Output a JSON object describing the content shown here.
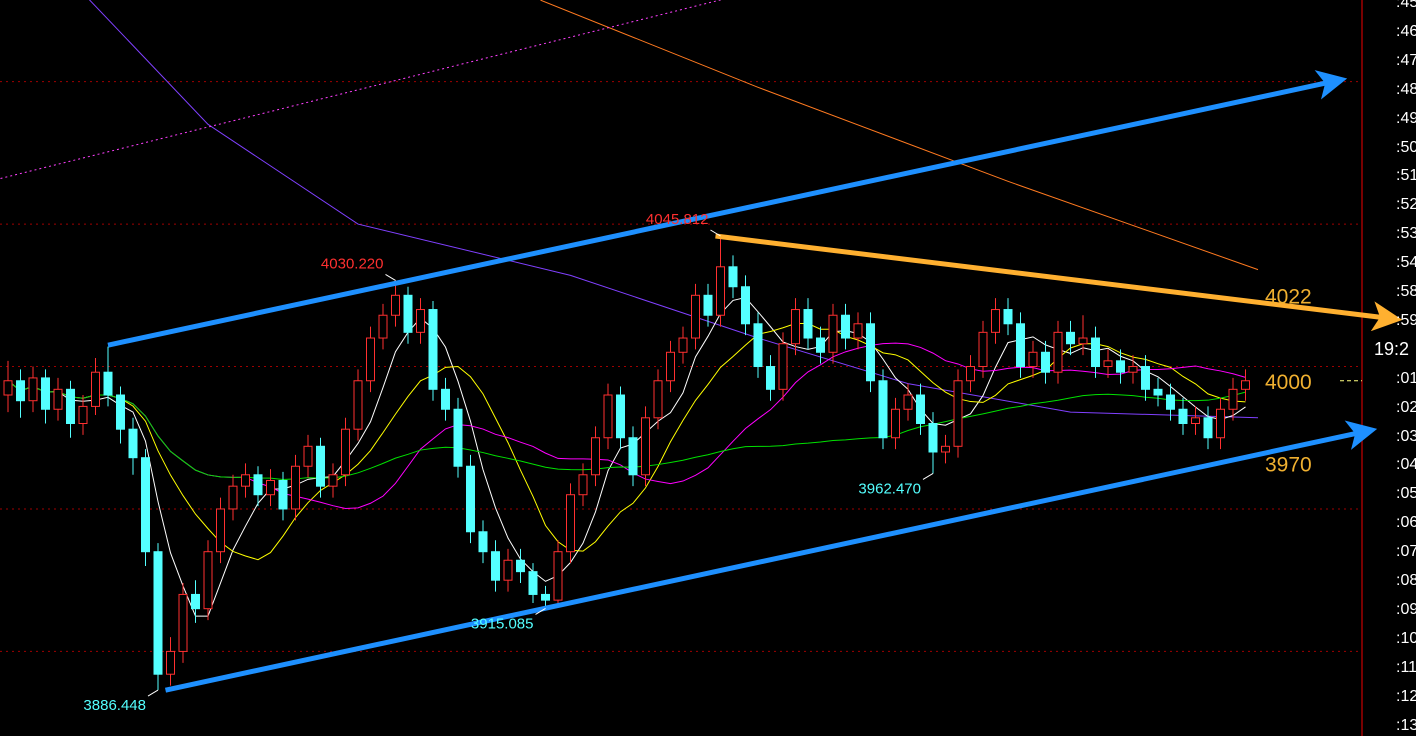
{
  "chart_data": {
    "type": "candlestick",
    "colors": {
      "up": "#ff3030",
      "down": "#54ffff",
      "ma5": "#ffffff",
      "ma10": "#ffff00",
      "ma20": "#ff00ff",
      "ma60": "#00e000",
      "grid": "#a00000",
      "axis": "#a00000",
      "trend_blue": "#1e90ff",
      "trend_orange": "#ffb030",
      "label_orange": "#f0b030"
    },
    "ylim": [
      3880,
      4140
    ],
    "grid_prices": [
      4100,
      4050,
      4000,
      3950,
      3900
    ],
    "candles": [
      [
        3990,
        4002,
        3984,
        3995
      ],
      [
        3995,
        3999,
        3982,
        3988
      ],
      [
        3988,
        4000,
        3984,
        3996
      ],
      [
        3996,
        3999,
        3980,
        3985
      ],
      [
        3985,
        3996,
        3981,
        3992
      ],
      [
        3992,
        3995,
        3975,
        3980
      ],
      [
        3980,
        3990,
        3976,
        3986
      ],
      [
        3986,
        4003,
        3983,
        3998
      ],
      [
        3998,
        4007,
        3986,
        3990
      ],
      [
        3990,
        3993,
        3973,
        3978
      ],
      [
        3978,
        3982,
        3962,
        3968
      ],
      [
        3968,
        3971,
        3930,
        3935
      ],
      [
        3935,
        3938,
        3886.448,
        3892
      ],
      [
        3892,
        3905,
        3888,
        3900
      ],
      [
        3900,
        3924,
        3896,
        3920
      ],
      [
        3920,
        3925,
        3910,
        3915
      ],
      [
        3915,
        3939,
        3911,
        3935
      ],
      [
        3935,
        3954,
        3931,
        3950
      ],
      [
        3950,
        3962,
        3946,
        3958
      ],
      [
        3958,
        3966,
        3954,
        3962
      ],
      [
        3962,
        3965,
        3951,
        3955
      ],
      [
        3955,
        3964,
        3951,
        3960
      ],
      [
        3960,
        3963,
        3946,
        3950
      ],
      [
        3950,
        3969,
        3946,
        3965
      ],
      [
        3965,
        3976,
        3961,
        3972
      ],
      [
        3972,
        3975,
        3954,
        3958
      ],
      [
        3958,
        3966,
        3954,
        3962
      ],
      [
        3962,
        3982,
        3958,
        3978
      ],
      [
        3978,
        3999,
        3974,
        3995
      ],
      [
        3995,
        4014,
        3991,
        4010
      ],
      [
        4010,
        4022,
        4006,
        4018
      ],
      [
        4018,
        4030.22,
        4014,
        4025
      ],
      [
        4025,
        4028,
        4008,
        4012
      ],
      [
        4012,
        4024,
        4008,
        4020
      ],
      [
        4020,
        4023,
        3988,
        3992
      ],
      [
        3992,
        3996,
        3981,
        3985
      ],
      [
        3985,
        3989,
        3961,
        3965
      ],
      [
        3965,
        3969,
        3938,
        3942
      ],
      [
        3942,
        3946,
        3931,
        3935
      ],
      [
        3935,
        3939,
        3921,
        3925
      ],
      [
        3925,
        3936,
        3921,
        3932
      ],
      [
        3932,
        3936,
        3924,
        3928
      ],
      [
        3928,
        3931,
        3917,
        3920
      ],
      [
        3920,
        3923,
        3915.085,
        3918
      ],
      [
        3918,
        3939,
        3916,
        3935
      ],
      [
        3935,
        3959,
        3931,
        3955
      ],
      [
        3955,
        3966,
        3951,
        3962
      ],
      [
        3962,
        3979,
        3958,
        3975
      ],
      [
        3975,
        3994,
        3971,
        3990
      ],
      [
        3990,
        3993,
        3971,
        3975
      ],
      [
        3975,
        3979,
        3958,
        3962
      ],
      [
        3962,
        3986,
        3958,
        3982
      ],
      [
        3982,
        3999,
        3978,
        3995
      ],
      [
        3995,
        4009,
        3991,
        4005
      ],
      [
        4005,
        4014,
        4001,
        4010
      ],
      [
        4010,
        4029,
        4006,
        4025
      ],
      [
        4025,
        4029,
        4014,
        4018
      ],
      [
        4018,
        4045.812,
        4014,
        4035
      ],
      [
        4035,
        4039,
        4024,
        4028
      ],
      [
        4028,
        4032,
        4011,
        4015
      ],
      [
        4015,
        4019,
        3996,
        4000
      ],
      [
        4000,
        4004,
        3988,
        3992
      ],
      [
        3992,
        4012,
        3988,
        4008
      ],
      [
        4008,
        4024,
        4004,
        4020
      ],
      [
        4020,
        4024,
        4006,
        4010
      ],
      [
        4010,
        4014,
        4001,
        4005
      ],
      [
        4005,
        4022,
        4001,
        4018
      ],
      [
        4018,
        4022,
        4006,
        4010
      ],
      [
        4010,
        4019,
        4006,
        4015
      ],
      [
        4015,
        4019,
        3991,
        3995
      ],
      [
        3995,
        3999,
        3971,
        3975
      ],
      [
        3975,
        3989,
        3971,
        3985
      ],
      [
        3985,
        3994,
        3981,
        3990
      ],
      [
        3990,
        3994,
        3976,
        3980
      ],
      [
        3980,
        3984,
        3962.47,
        3970
      ],
      [
        3970,
        3976,
        3966,
        3972
      ],
      [
        3972,
        3999,
        3968,
        3995
      ],
      [
        3995,
        4004,
        3991,
        4000
      ],
      [
        4000,
        4016,
        3996,
        4012
      ],
      [
        4012,
        4024,
        4008,
        4020
      ],
      [
        4020,
        4024,
        4011,
        4015
      ],
      [
        4015,
        4019,
        3996,
        4000
      ],
      [
        4000,
        4009,
        3996,
        4005
      ],
      [
        4005,
        4009,
        3994,
        3998
      ],
      [
        3998,
        4016,
        3994,
        4012
      ],
      [
        4012,
        4016,
        4004,
        4008
      ],
      [
        4008,
        4018,
        4004,
        4010
      ],
      [
        4010,
        4014,
        3996,
        4000
      ],
      [
        4000,
        4006,
        3996,
        4002
      ],
      [
        4002,
        4006,
        3994,
        3998
      ],
      [
        3998,
        4004,
        3994,
        4000
      ],
      [
        4000,
        4004,
        3988,
        3992
      ],
      [
        3992,
        3996,
        3986,
        3990
      ],
      [
        3990,
        3994,
        3981,
        3985
      ],
      [
        3985,
        3989,
        3976,
        3980
      ],
      [
        3980,
        3986,
        3976,
        3982
      ],
      [
        3982,
        3986,
        3971,
        3975
      ],
      [
        3975,
        3989,
        3971,
        3985
      ],
      [
        3985,
        3996,
        3981,
        3992
      ],
      [
        3992,
        3999,
        3988,
        3995
      ]
    ],
    "trend_lines": [
      {
        "name": "upper-channel-arrow",
        "color": "trend_blue",
        "from": [
          8,
          4007.5
        ],
        "to": [
          106.6,
          4100
        ],
        "arrow": true,
        "width": 5
      },
      {
        "name": "lower-channel-arrow",
        "color": "trend_blue",
        "from": [
          12.6,
          3886.4
        ],
        "to": [
          109,
          3977
        ],
        "arrow": true,
        "width": 5
      },
      {
        "name": "resistance-arrow",
        "color": "trend_orange",
        "from": [
          56.6,
          4045.8
        ],
        "to": [
          111,
          4017
        ],
        "arrow": true,
        "width": 5
      }
    ],
    "reference_lines": [
      {
        "name": "ma-long-orange",
        "color": "#ff7a20",
        "points": [
          [
            42.6,
            4128.6
          ],
          [
            60,
            4098
          ],
          [
            80,
            4065
          ],
          [
            100,
            4034
          ]
        ]
      },
      {
        "name": "ma-long-purple",
        "color": "#8040ff",
        "points": [
          [
            5.8,
            4132
          ],
          [
            16,
            4085
          ],
          [
            28,
            4050
          ],
          [
            45,
            4032
          ],
          [
            60,
            4010
          ],
          [
            72,
            3994
          ],
          [
            85,
            3984
          ],
          [
            100,
            3982
          ]
        ]
      },
      {
        "name": "extension-magenta-dotted",
        "color": "#ff40ff",
        "dash": true,
        "points": [
          [
            -0.6,
            4066
          ],
          [
            72,
            4145
          ]
        ]
      }
    ],
    "annotations": [
      {
        "text": "4045.812",
        "candle": 57,
        "price": 4045.812,
        "color": "#ff3030",
        "side": "left",
        "pos": "above"
      },
      {
        "text": "4030.220",
        "candle": 31,
        "price": 4030.22,
        "color": "#ff3030",
        "side": "left",
        "pos": "above"
      },
      {
        "text": "3962.470",
        "candle": 74,
        "price": 3962.47,
        "color": "#54ffff",
        "side": "left",
        "pos": "below"
      },
      {
        "text": "3915.085",
        "candle": 43,
        "price": 3915.085,
        "color": "#54ffff",
        "side": "left",
        "pos": "below"
      },
      {
        "text": "3886.448",
        "candle": 12,
        "price": 3886.448,
        "color": "#54ffff",
        "side": "left",
        "pos": "below"
      }
    ],
    "price_levels": [
      {
        "text": "4022",
        "price": 4025
      },
      {
        "text": "4000",
        "price": 3995
      },
      {
        "text": "3970",
        "price": 3966
      }
    ],
    "current_price": 3995,
    "axis_labels": [
      ":45",
      ":46",
      ":47",
      ":48",
      ":49",
      ":50",
      ":51",
      ":52",
      ":53",
      ":54",
      ":58",
      ":59",
      "19:2",
      ":01",
      ":02",
      ":03",
      ":04",
      ":05",
      ":06",
      ":07",
      ":08",
      ":09",
      ":10",
      ":11",
      ":12",
      ":13"
    ]
  }
}
